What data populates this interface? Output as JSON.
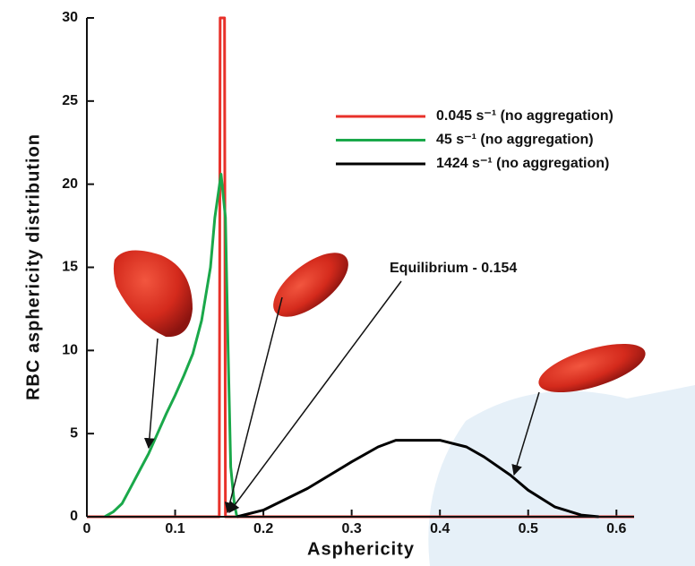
{
  "chart_data": {
    "type": "line",
    "xlabel": "Asphericity",
    "ylabel": "RBC asphericity distribution",
    "annotation": "Equilibrium - 0.154",
    "xlim": [
      0,
      0.62
    ],
    "ylim": [
      0,
      30
    ],
    "xticks": [
      0,
      0.1,
      0.2,
      0.3,
      0.4,
      0.5,
      0.6
    ],
    "yticks": [
      0,
      5,
      10,
      15,
      20,
      25,
      30
    ],
    "series": [
      {
        "name": "0.045 s⁻¹ (no aggregation)",
        "color": "#e8312a",
        "x": [
          0,
          0.15,
          0.151,
          0.156,
          0.157,
          0.62
        ],
        "values": [
          0,
          0,
          30,
          30,
          0,
          0
        ]
      },
      {
        "name": "45 s⁻¹ (no aggregation)",
        "color": "#1aa84a",
        "x": [
          0.02,
          0.03,
          0.04,
          0.05,
          0.06,
          0.07,
          0.08,
          0.09,
          0.1,
          0.11,
          0.12,
          0.13,
          0.14,
          0.145,
          0.152,
          0.157,
          0.16,
          0.163,
          0.167,
          0.17
        ],
        "values": [
          0,
          0.3,
          0.8,
          1.8,
          2.8,
          3.8,
          5.0,
          6.2,
          7.3,
          8.5,
          9.8,
          11.8,
          15,
          18,
          20.6,
          18,
          10,
          3,
          0.8,
          0
        ]
      },
      {
        "name": "1424 s⁻¹ (no aggregation)",
        "color": "#000000",
        "x": [
          0.17,
          0.2,
          0.25,
          0.3,
          0.33,
          0.35,
          0.37,
          0.4,
          0.43,
          0.45,
          0.48,
          0.5,
          0.53,
          0.56,
          0.58
        ],
        "values": [
          0,
          0.4,
          1.7,
          3.3,
          4.2,
          4.6,
          4.6,
          4.6,
          4.2,
          3.6,
          2.5,
          1.6,
          0.6,
          0.1,
          0
        ]
      }
    ]
  }
}
